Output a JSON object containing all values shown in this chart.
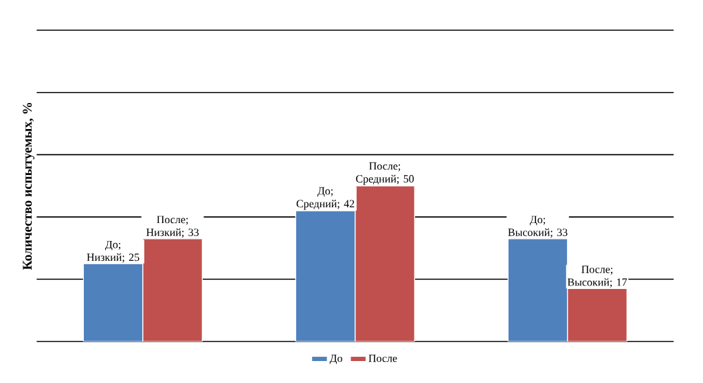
{
  "chart_data": {
    "type": "bar",
    "ylabel": "Количество испытуемых, %",
    "categories": [
      null,
      null,
      null
    ],
    "series": [
      {
        "name": "До",
        "color": "#4f81bd",
        "values": [
          25,
          42,
          33
        ],
        "value_labels": [
          "До; Низкий; 25",
          "До; Средний; 42",
          "До; Высокий; 33"
        ]
      },
      {
        "name": "После",
        "color": "#c0504d",
        "values": [
          33,
          50,
          17
        ],
        "value_labels": [
          "После; Низкий; 33",
          "После; Средний; 50",
          "После; Высокий; 17"
        ]
      }
    ],
    "ylim": [
      0,
      100
    ],
    "yticks": [
      {
        "value": 0,
        "label": null
      },
      {
        "value": 20,
        "label": null
      },
      {
        "value": 40,
        "label": null
      },
      {
        "value": 60,
        "label": null
      },
      {
        "value": 80,
        "label": null
      },
      {
        "value": 100,
        "label": null
      }
    ],
    "grid": "y",
    "legend": "bottom"
  }
}
